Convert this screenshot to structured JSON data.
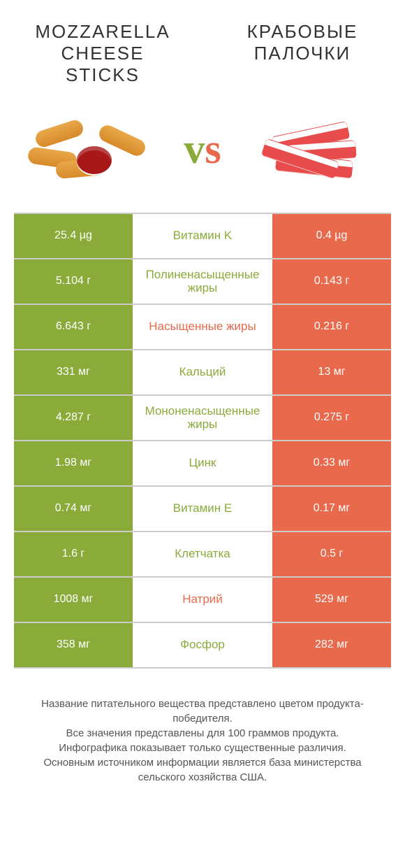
{
  "header": {
    "left_title": "Mozzarella cheese sticks",
    "right_title": "Крабовые палочки",
    "vs": "vs"
  },
  "colors": {
    "green": "#8aab3a",
    "orange": "#e8694b",
    "vs_v": "#8aab3a",
    "vs_s": "#e8694b"
  },
  "rows": [
    {
      "left": "25.4 µg",
      "label": "Витамин K",
      "right": "0.4 µg",
      "winner": "left"
    },
    {
      "left": "5.104 г",
      "label": "Полиненасыщенные жиры",
      "right": "0.143 г",
      "winner": "left"
    },
    {
      "left": "6.643 г",
      "label": "Насыщенные жиры",
      "right": "0.216 г",
      "winner": "right"
    },
    {
      "left": "331 мг",
      "label": "Кальций",
      "right": "13 мг",
      "winner": "left"
    },
    {
      "left": "4.287 г",
      "label": "Мононенасыщенные жиры",
      "right": "0.275 г",
      "winner": "left"
    },
    {
      "left": "1.98 мг",
      "label": "Цинк",
      "right": "0.33 мг",
      "winner": "left"
    },
    {
      "left": "0.74 мг",
      "label": "Витамин E",
      "right": "0.17 мг",
      "winner": "left"
    },
    {
      "left": "1.6 г",
      "label": "Клетчатка",
      "right": "0.5 г",
      "winner": "left"
    },
    {
      "left": "1008 мг",
      "label": "Натрий",
      "right": "529 мг",
      "winner": "right"
    },
    {
      "left": "358 мг",
      "label": "Фосфор",
      "right": "282 мг",
      "winner": "left"
    }
  ],
  "footer": {
    "line1": "Название питательного вещества представлено цветом продукта-победителя.",
    "line2": "Все значения представлены для 100 граммов продукта.",
    "line3": "Инфографика показывает только существенные различия.",
    "line4": "Основным источником информации является база министерства сельского хозяйства США."
  }
}
